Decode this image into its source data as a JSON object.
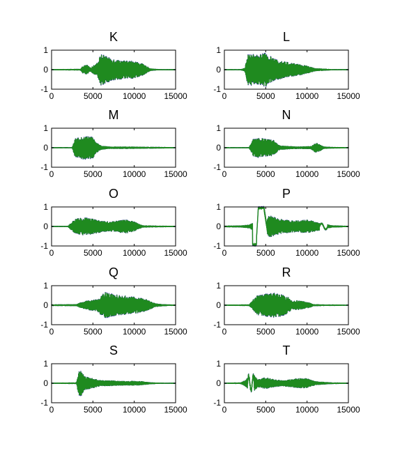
{
  "figure": {
    "background": "#ffffff",
    "series_colors": {
      "primary": "#1a1a99",
      "overlay": "#1f8a1f"
    }
  },
  "chart_data": [
    {
      "type": "line",
      "title": "K",
      "xlim": [
        0,
        15000
      ],
      "ylim": [
        -1,
        1
      ],
      "xticks": [
        0,
        5000,
        10000,
        15000
      ],
      "yticks": [
        -1,
        0,
        1
      ],
      "envelope": {
        "x": [
          0,
          3500,
          3800,
          4300,
          4700,
          5500,
          6000,
          7000,
          8000,
          9000,
          10000,
          11000,
          12000,
          13000,
          15000
        ],
        "y": [
          0.03,
          0.04,
          0.2,
          0.25,
          0.1,
          0.35,
          0.8,
          0.6,
          0.5,
          0.45,
          0.45,
          0.3,
          0.06,
          0.03,
          0.03
        ]
      }
    },
    {
      "type": "line",
      "title": "L",
      "xlim": [
        0,
        15000
      ],
      "ylim": [
        -1,
        1
      ],
      "xticks": [
        0,
        5000,
        10000,
        15000
      ],
      "yticks": [
        -1,
        0,
        1
      ],
      "envelope": {
        "x": [
          0,
          2000,
          2500,
          2800,
          3000,
          4000,
          5000,
          6000,
          7000,
          8000,
          9000,
          10000,
          11000,
          13000,
          15000
        ],
        "y": [
          0.03,
          0.03,
          0.1,
          0.75,
          0.8,
          0.75,
          0.85,
          0.55,
          0.45,
          0.35,
          0.3,
          0.2,
          0.08,
          0.03,
          0.03
        ]
      }
    },
    {
      "type": "line",
      "title": "M",
      "xlim": [
        0,
        15000
      ],
      "ylim": [
        -1,
        1
      ],
      "xticks": [
        0,
        5000,
        10000,
        15000
      ],
      "yticks": [
        -1,
        0,
        1
      ],
      "envelope": {
        "x": [
          0,
          2500,
          2800,
          3500,
          4000,
          5000,
          5300,
          6000,
          7000,
          9000,
          11000,
          13000,
          15000
        ],
        "y": [
          0.03,
          0.03,
          0.45,
          0.55,
          0.6,
          0.55,
          0.3,
          0.1,
          0.06,
          0.06,
          0.05,
          0.04,
          0.03
        ]
      }
    },
    {
      "type": "line",
      "title": "N",
      "xlim": [
        0,
        15000
      ],
      "ylim": [
        -1,
        1
      ],
      "xticks": [
        0,
        5000,
        10000,
        15000
      ],
      "yticks": [
        -1,
        0,
        1
      ],
      "envelope": {
        "x": [
          0,
          3000,
          3500,
          4000,
          5000,
          6000,
          6500,
          7000,
          9000,
          10500,
          11000,
          11500,
          12000,
          13000,
          15000
        ],
        "y": [
          0.03,
          0.03,
          0.45,
          0.5,
          0.45,
          0.4,
          0.15,
          0.1,
          0.06,
          0.08,
          0.25,
          0.2,
          0.06,
          0.04,
          0.03
        ]
      }
    },
    {
      "type": "line",
      "title": "O",
      "xlim": [
        0,
        15000
      ],
      "ylim": [
        -1,
        1
      ],
      "xticks": [
        0,
        5000,
        10000,
        15000
      ],
      "yticks": [
        -1,
        0,
        1
      ],
      "envelope": {
        "x": [
          0,
          2000,
          2500,
          3000,
          4000,
          5000,
          6000,
          7000,
          8000,
          9000,
          10000,
          10500,
          11000,
          13000,
          15000
        ],
        "y": [
          0.03,
          0.03,
          0.25,
          0.4,
          0.45,
          0.4,
          0.3,
          0.25,
          0.3,
          0.35,
          0.25,
          0.15,
          0.06,
          0.04,
          0.03
        ]
      }
    },
    {
      "type": "line",
      "title": "P",
      "xlim": [
        0,
        15000
      ],
      "ylim": [
        -1,
        1
      ],
      "xticks": [
        0,
        5000,
        10000,
        15000
      ],
      "yticks": [
        -1,
        0,
        1
      ],
      "special": "P",
      "envelope": {
        "x": [
          0,
          2000,
          3000,
          3500,
          4000,
          4200,
          4500,
          5500,
          6500,
          8000,
          9000,
          10000,
          11000,
          13000,
          15000
        ],
        "y": [
          0.04,
          0.05,
          0.1,
          0.2,
          0.25,
          0.3,
          0.5,
          0.55,
          0.4,
          0.3,
          0.3,
          0.35,
          0.25,
          0.06,
          0.03
        ]
      }
    },
    {
      "type": "line",
      "title": "Q",
      "xlim": [
        0,
        15000
      ],
      "ylim": [
        -1,
        1
      ],
      "xticks": [
        0,
        5000,
        10000,
        15000
      ],
      "yticks": [
        -1,
        0,
        1
      ],
      "envelope": {
        "x": [
          0,
          3000,
          3500,
          4500,
          5500,
          6000,
          6500,
          7500,
          8500,
          9500,
          10500,
          11500,
          12500,
          13500,
          15000
        ],
        "y": [
          0.04,
          0.05,
          0.15,
          0.25,
          0.3,
          0.5,
          0.65,
          0.55,
          0.5,
          0.45,
          0.4,
          0.3,
          0.1,
          0.05,
          0.03
        ]
      }
    },
    {
      "type": "line",
      "title": "R",
      "xlim": [
        0,
        15000
      ],
      "ylim": [
        -1,
        1
      ],
      "xticks": [
        0,
        5000,
        10000,
        15000
      ],
      "yticks": [
        -1,
        0,
        1
      ],
      "envelope": {
        "x": [
          0,
          3000,
          3500,
          4000,
          5000,
          6000,
          7000,
          7800,
          8200,
          8800,
          9500,
          10200,
          10800,
          12000,
          15000
        ],
        "y": [
          0.03,
          0.04,
          0.3,
          0.5,
          0.6,
          0.65,
          0.55,
          0.4,
          0.2,
          0.25,
          0.2,
          0.15,
          0.05,
          0.04,
          0.03
        ]
      }
    },
    {
      "type": "line",
      "title": "S",
      "xlim": [
        0,
        15000
      ],
      "ylim": [
        -1,
        1
      ],
      "xticks": [
        0,
        5000,
        10000,
        15000
      ],
      "yticks": [
        -1,
        0,
        1
      ],
      "envelope": {
        "x": [
          0,
          3000,
          3300,
          3600,
          4000,
          5000,
          6000,
          7000,
          8000,
          9000,
          10000,
          11000,
          12000,
          13000,
          15000
        ],
        "y": [
          0.03,
          0.04,
          0.6,
          0.65,
          0.35,
          0.25,
          0.15,
          0.15,
          0.12,
          0.12,
          0.12,
          0.1,
          0.05,
          0.03,
          0.03
        ]
      }
    },
    {
      "type": "line",
      "title": "T",
      "xlim": [
        0,
        15000
      ],
      "ylim": [
        -1,
        1
      ],
      "xticks": [
        0,
        5000,
        10000,
        15000
      ],
      "yticks": [
        -1,
        0,
        1
      ],
      "special": "T",
      "envelope": {
        "x": [
          0,
          2000,
          2500,
          3000,
          3500,
          4000,
          5000,
          6000,
          7000,
          8000,
          9000,
          10000,
          11000,
          13000,
          15000
        ],
        "y": [
          0.03,
          0.04,
          0.15,
          0.35,
          0.5,
          0.2,
          0.3,
          0.2,
          0.15,
          0.2,
          0.25,
          0.25,
          0.1,
          0.04,
          0.03
        ]
      }
    }
  ]
}
